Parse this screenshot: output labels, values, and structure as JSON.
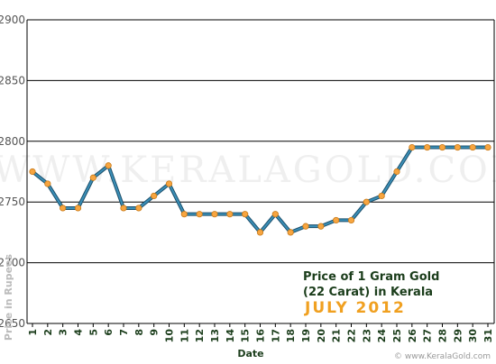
{
  "chart_data": {
    "type": "line",
    "title_line1": "Price of 1 Gram Gold",
    "title_line2": "(22 Carat) in Kerala",
    "month_label": "JULY 2012",
    "xlabel": "Date",
    "ylabel": "Price in Rupees",
    "watermark": "WWW.KERALAGOLD.COM",
    "footer": "© www.KeralaGold.com",
    "ylim": [
      2650,
      2900
    ],
    "yticks": [
      2650,
      2700,
      2750,
      2800,
      2850,
      2900
    ],
    "x": [
      1,
      2,
      3,
      4,
      5,
      6,
      7,
      8,
      9,
      10,
      11,
      12,
      13,
      14,
      15,
      16,
      17,
      18,
      19,
      20,
      21,
      22,
      23,
      24,
      25,
      26,
      27,
      28,
      29,
      30,
      31
    ],
    "series": [
      {
        "values": [
          2775,
          2765,
          2745,
          2745,
          2770,
          2780,
          2745,
          2745,
          2755,
          2765,
          2740,
          2740,
          2740,
          2740,
          2740,
          2725,
          2740,
          2725,
          2730,
          2730,
          2735,
          2735,
          2750,
          2755,
          2775,
          2795,
          2795,
          2795,
          2795,
          2795,
          2795
        ]
      }
    ],
    "grid": true,
    "colors": {
      "line": "#3a8fb7",
      "marker": "#f7a540",
      "marker_edge": "#c87a18",
      "grid": "#000000"
    }
  }
}
